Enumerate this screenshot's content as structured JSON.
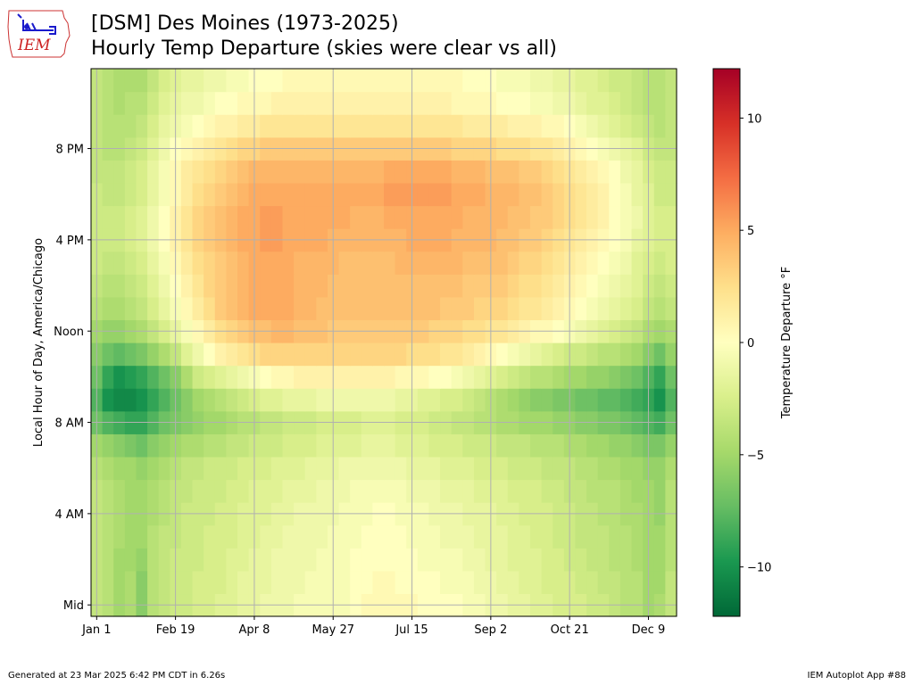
{
  "logo": {
    "text": "IEM"
  },
  "chart_data": {
    "type": "heatmap",
    "title": "[DSM] Des Moines (1973-2025)",
    "subtitle": "Hourly Temp Departure (skies were clear vs all)",
    "xlabel": "",
    "ylabel": "Local Hour of Day, America/Chicago",
    "x_tick_labels": [
      "Jan 1",
      "Feb 19",
      "Apr 8",
      "May 27",
      "Jul 15",
      "Sep 2",
      "Oct 21",
      "Dec 9"
    ],
    "y_tick_labels": [
      "Mid",
      "4 AM",
      "8 AM",
      "Noon",
      "4 PM",
      "8 PM"
    ],
    "colorbar_label": "Temperature Departure °F",
    "colorbar_ticks": [
      "−10",
      "−5",
      "0",
      "5",
      "10"
    ],
    "colorbar_tick_values": [
      -10,
      -5,
      0,
      5,
      10
    ],
    "colorbar_range": [
      -12.2,
      12.2
    ],
    "colormap": "RdYlGn_r",
    "colormap_stops": [
      "#006837",
      "#1a9850",
      "#66bd63",
      "#a6d96a",
      "#d9ef8b",
      "#ffffbf",
      "#fee08b",
      "#fdae61",
      "#f46d43",
      "#d73027",
      "#a50026"
    ],
    "grid": true,
    "x_columns": 52,
    "y_hours": 24,
    "values_by_hour": [
      [
        -3.5,
        -4.0,
        -5.0,
        -4.5,
        -6.0,
        -4.0,
        -3.5,
        -3.0,
        -3.0,
        -2.5,
        -2.5,
        -2.0,
        -2.0,
        -1.5,
        -1.5,
        -1.0,
        -1.0,
        -1.0,
        -0.5,
        -0.5,
        -0.5,
        -0.5,
        -0.5,
        0.0,
        0.5,
        0.5,
        0.5,
        0.5,
        0.5,
        0.0,
        0.0,
        0.0,
        0.0,
        -0.5,
        -0.5,
        -1.0,
        -1.0,
        -1.5,
        -1.5,
        -2.0,
        -2.0,
        -2.5,
        -2.5,
        -2.5,
        -3.0,
        -3.0,
        -3.5,
        -4.0,
        -4.0,
        -5.0,
        -4.5,
        -3.5
      ],
      [
        -3.5,
        -4.0,
        -5.0,
        -4.5,
        -6.0,
        -4.0,
        -3.5,
        -3.0,
        -3.0,
        -2.5,
        -2.5,
        -2.5,
        -2.0,
        -1.5,
        -1.5,
        -1.5,
        -1.0,
        -1.0,
        -1.0,
        -0.5,
        -0.5,
        -0.5,
        -0.5,
        0.0,
        0.0,
        0.5,
        0.5,
        0.0,
        0.0,
        0.0,
        0.0,
        -0.5,
        -0.5,
        -0.5,
        -1.0,
        -1.0,
        -1.5,
        -1.5,
        -2.0,
        -2.0,
        -2.5,
        -2.5,
        -2.5,
        -3.0,
        -3.0,
        -3.5,
        -3.5,
        -4.0,
        -4.0,
        -5.0,
        -5.0,
        -3.5
      ],
      [
        -3.5,
        -4.0,
        -5.0,
        -5.0,
        -5.5,
        -4.0,
        -3.5,
        -3.0,
        -3.0,
        -3.0,
        -2.5,
        -2.5,
        -2.0,
        -2.0,
        -1.5,
        -1.5,
        -1.0,
        -1.0,
        -1.0,
        -1.0,
        -0.5,
        -0.5,
        -0.5,
        0.0,
        0.0,
        0.0,
        0.0,
        0.0,
        0.0,
        -0.5,
        -0.5,
        -0.5,
        -0.5,
        -1.0,
        -1.0,
        -1.5,
        -1.5,
        -2.0,
        -2.0,
        -2.0,
        -2.5,
        -2.5,
        -3.0,
        -3.0,
        -3.5,
        -3.5,
        -4.0,
        -4.0,
        -4.5,
        -5.0,
        -5.0,
        -4.0
      ],
      [
        -3.5,
        -4.0,
        -4.5,
        -5.0,
        -5.0,
        -4.0,
        -3.5,
        -3.5,
        -3.0,
        -3.0,
        -2.5,
        -2.5,
        -2.5,
        -2.0,
        -2.0,
        -1.5,
        -1.5,
        -1.0,
        -1.0,
        -1.0,
        -1.0,
        -0.5,
        -0.5,
        -0.5,
        0.0,
        0.0,
        0.0,
        0.0,
        -0.5,
        -0.5,
        -0.5,
        -1.0,
        -1.0,
        -1.0,
        -1.5,
        -1.5,
        -1.5,
        -2.0,
        -2.0,
        -2.5,
        -2.5,
        -3.0,
        -3.0,
        -3.5,
        -3.5,
        -3.5,
        -4.0,
        -4.0,
        -4.5,
        -5.0,
        -5.0,
        -4.0
      ],
      [
        -3.5,
        -4.0,
        -4.5,
        -5.0,
        -5.0,
        -4.5,
        -4.0,
        -3.5,
        -3.0,
        -3.0,
        -3.0,
        -2.5,
        -2.5,
        -2.0,
        -2.0,
        -2.0,
        -1.5,
        -1.5,
        -1.0,
        -1.0,
        -1.0,
        -1.0,
        -0.5,
        -0.5,
        -0.5,
        0.0,
        0.0,
        -0.5,
        -0.5,
        -0.5,
        -1.0,
        -1.0,
        -1.0,
        -1.5,
        -1.5,
        -1.5,
        -2.0,
        -2.0,
        -2.5,
        -2.5,
        -2.5,
        -3.0,
        -3.0,
        -3.5,
        -3.5,
        -4.0,
        -4.0,
        -4.5,
        -4.5,
        -5.0,
        -5.5,
        -4.0
      ],
      [
        -3.5,
        -4.0,
        -4.5,
        -5.0,
        -5.0,
        -4.5,
        -4.0,
        -3.5,
        -3.5,
        -3.0,
        -3.0,
        -3.0,
        -2.5,
        -2.5,
        -2.0,
        -2.0,
        -2.0,
        -1.5,
        -1.5,
        -1.5,
        -1.0,
        -1.0,
        -1.0,
        -0.5,
        -0.5,
        -0.5,
        -0.5,
        -0.5,
        -1.0,
        -1.0,
        -1.0,
        -1.5,
        -1.5,
        -1.5,
        -2.0,
        -2.0,
        -2.0,
        -2.5,
        -2.5,
        -2.5,
        -3.0,
        -3.0,
        -3.5,
        -3.5,
        -4.0,
        -4.0,
        -4.0,
        -4.5,
        -5.0,
        -5.0,
        -5.5,
        -4.0
      ],
      [
        -4.0,
        -4.5,
        -5.0,
        -5.0,
        -5.5,
        -5.0,
        -4.5,
        -4.0,
        -3.5,
        -3.5,
        -3.0,
        -3.0,
        -3.0,
        -2.5,
        -2.5,
        -2.5,
        -2.0,
        -2.0,
        -2.0,
        -1.5,
        -1.5,
        -1.5,
        -1.0,
        -1.0,
        -1.0,
        -1.0,
        -1.0,
        -1.0,
        -1.5,
        -1.5,
        -1.5,
        -2.0,
        -2.0,
        -2.0,
        -2.5,
        -2.5,
        -2.5,
        -3.0,
        -3.0,
        -3.0,
        -3.5,
        -3.5,
        -3.5,
        -4.0,
        -4.0,
        -4.5,
        -4.5,
        -5.0,
        -5.0,
        -5.5,
        -5.5,
        -4.5
      ],
      [
        -5.0,
        -5.5,
        -6.0,
        -6.5,
        -7.0,
        -6.0,
        -5.5,
        -5.0,
        -4.5,
        -4.5,
        -4.0,
        -4.0,
        -3.5,
        -3.5,
        -3.0,
        -3.0,
        -3.0,
        -2.5,
        -2.5,
        -2.5,
        -2.0,
        -2.0,
        -2.0,
        -2.0,
        -1.5,
        -1.5,
        -1.5,
        -2.0,
        -2.0,
        -2.0,
        -2.5,
        -2.5,
        -2.5,
        -3.0,
        -3.0,
        -3.0,
        -3.5,
        -3.5,
        -3.5,
        -4.0,
        -4.0,
        -4.0,
        -4.5,
        -4.5,
        -5.0,
        -5.0,
        -5.5,
        -5.5,
        -6.0,
        -6.5,
        -6.5,
        -5.5
      ],
      [
        -7.0,
        -8.0,
        -8.5,
        -9.0,
        -9.0,
        -8.0,
        -7.0,
        -6.5,
        -6.0,
        -5.5,
        -5.0,
        -5.0,
        -4.5,
        -4.0,
        -4.0,
        -3.5,
        -3.5,
        -3.0,
        -3.0,
        -3.0,
        -2.5,
        -2.5,
        -2.5,
        -2.5,
        -2.0,
        -2.0,
        -2.0,
        -2.5,
        -2.5,
        -2.5,
        -3.0,
        -3.0,
        -3.5,
        -3.5,
        -4.0,
        -4.0,
        -4.5,
        -4.5,
        -5.0,
        -5.0,
        -5.0,
        -5.5,
        -5.5,
        -6.0,
        -6.0,
        -6.5,
        -6.5,
        -7.0,
        -7.5,
        -8.0,
        -8.5,
        -7.0
      ],
      [
        -8.0,
        -10.0,
        -10.5,
        -10.5,
        -10.0,
        -9.0,
        -8.0,
        -7.0,
        -6.0,
        -5.0,
        -4.5,
        -4.0,
        -3.5,
        -3.0,
        -2.5,
        -2.0,
        -2.0,
        -1.5,
        -1.5,
        -1.5,
        -1.0,
        -1.0,
        -1.0,
        -1.0,
        -1.0,
        -1.0,
        -1.0,
        -1.5,
        -1.5,
        -2.0,
        -2.0,
        -2.5,
        -2.5,
        -3.0,
        -3.5,
        -4.0,
        -4.5,
        -5.0,
        -5.5,
        -6.0,
        -6.0,
        -6.5,
        -6.5,
        -7.0,
        -7.0,
        -7.5,
        -7.5,
        -8.0,
        -8.5,
        -9.0,
        -10.0,
        -8.0
      ],
      [
        -7.0,
        -9.0,
        -10.0,
        -9.5,
        -9.0,
        -8.0,
        -7.0,
        -6.0,
        -4.5,
        -3.0,
        -2.5,
        -2.0,
        -1.5,
        -1.0,
        -0.5,
        0.0,
        0.5,
        0.5,
        1.0,
        1.0,
        1.0,
        1.0,
        1.0,
        1.0,
        1.0,
        1.0,
        1.0,
        0.5,
        0.5,
        0.5,
        0.0,
        0.0,
        -0.5,
        -1.0,
        -1.5,
        -2.0,
        -2.5,
        -3.0,
        -3.5,
        -4.0,
        -4.0,
        -4.5,
        -5.0,
        -5.0,
        -5.5,
        -5.5,
        -6.0,
        -6.5,
        -7.0,
        -8.0,
        -9.0,
        -7.0
      ],
      [
        -6.0,
        -7.0,
        -7.5,
        -7.0,
        -6.5,
        -5.5,
        -4.5,
        -3.5,
        -2.0,
        -1.0,
        0.0,
        1.0,
        1.5,
        2.0,
        2.5,
        3.0,
        3.0,
        3.0,
        3.0,
        3.0,
        3.0,
        3.0,
        3.0,
        3.0,
        3.0,
        3.0,
        3.0,
        3.0,
        2.5,
        2.5,
        2.5,
        2.0,
        2.0,
        1.5,
        1.0,
        0.5,
        0.0,
        -0.5,
        -1.0,
        -1.5,
        -2.0,
        -2.5,
        -3.0,
        -3.0,
        -3.5,
        -4.0,
        -4.0,
        -4.5,
        -5.0,
        -6.0,
        -7.0,
        -5.5
      ],
      [
        -5.0,
        -5.5,
        -5.5,
        -5.0,
        -4.5,
        -3.5,
        -2.5,
        -1.5,
        -0.5,
        0.5,
        1.5,
        2.5,
        3.0,
        3.5,
        4.0,
        4.0,
        4.5,
        4.5,
        4.0,
        4.0,
        4.0,
        3.5,
        3.5,
        3.5,
        3.5,
        3.5,
        3.5,
        3.5,
        3.5,
        3.5,
        3.0,
        3.0,
        3.0,
        2.5,
        2.5,
        2.0,
        2.0,
        1.5,
        1.0,
        0.5,
        0.5,
        0.0,
        -0.5,
        -1.0,
        -1.5,
        -2.0,
        -2.5,
        -3.0,
        -3.5,
        -4.5,
        -5.0,
        -4.5
      ],
      [
        -4.0,
        -4.5,
        -4.5,
        -4.0,
        -3.5,
        -2.5,
        -1.5,
        -0.5,
        0.5,
        1.5,
        2.5,
        3.5,
        4.0,
        4.5,
        5.0,
        5.0,
        5.0,
        5.0,
        4.5,
        4.5,
        4.0,
        4.0,
        4.0,
        4.0,
        4.0,
        4.0,
        4.0,
        4.0,
        4.0,
        4.0,
        4.0,
        3.5,
        3.5,
        3.5,
        3.0,
        3.0,
        3.0,
        2.5,
        2.0,
        2.0,
        1.5,
        1.0,
        0.5,
        0.0,
        -0.5,
        -1.0,
        -1.5,
        -2.0,
        -2.5,
        -3.5,
        -4.0,
        -3.5
      ],
      [
        -3.5,
        -4.0,
        -4.0,
        -3.5,
        -3.0,
        -2.0,
        -1.0,
        0.0,
        1.0,
        2.0,
        3.0,
        3.5,
        4.0,
        4.5,
        5.0,
        5.0,
        5.0,
        5.0,
        4.5,
        4.5,
        4.5,
        4.0,
        4.0,
        4.0,
        4.0,
        4.0,
        4.0,
        4.0,
        4.0,
        4.0,
        4.0,
        4.0,
        4.0,
        3.5,
        3.5,
        3.5,
        3.5,
        3.0,
        2.5,
        2.5,
        2.0,
        1.5,
        1.0,
        0.5,
        0.0,
        -0.5,
        -1.0,
        -1.5,
        -2.0,
        -3.0,
        -3.5,
        -3.0
      ],
      [
        -3.0,
        -3.5,
        -3.5,
        -3.0,
        -2.5,
        -1.5,
        -0.5,
        0.5,
        1.5,
        2.5,
        3.0,
        3.5,
        4.0,
        4.5,
        5.0,
        5.0,
        5.0,
        5.0,
        4.5,
        4.5,
        4.5,
        4.5,
        4.0,
        4.0,
        4.0,
        4.0,
        4.0,
        4.5,
        4.5,
        4.5,
        4.5,
        4.5,
        4.5,
        4.0,
        4.0,
        4.0,
        4.0,
        3.5,
        3.0,
        3.0,
        2.5,
        2.0,
        1.5,
        1.0,
        0.5,
        0.0,
        -0.5,
        -1.0,
        -2.0,
        -2.5,
        -3.0,
        -2.5
      ],
      [
        -3.0,
        -3.0,
        -3.0,
        -2.5,
        -2.0,
        -1.0,
        0.0,
        1.0,
        2.0,
        3.0,
        3.5,
        4.0,
        4.5,
        5.0,
        5.0,
        5.5,
        5.5,
        5.0,
        5.0,
        5.0,
        5.0,
        4.5,
        4.5,
        4.5,
        4.5,
        4.5,
        4.5,
        4.5,
        5.0,
        5.0,
        5.0,
        5.0,
        4.5,
        4.5,
        4.5,
        4.5,
        4.0,
        4.0,
        3.5,
        3.5,
        3.0,
        2.5,
        2.0,
        1.5,
        1.0,
        0.5,
        0.0,
        -0.5,
        -1.5,
        -2.0,
        -2.5,
        -2.5
      ],
      [
        -3.0,
        -3.0,
        -3.0,
        -2.5,
        -2.0,
        -1.0,
        0.0,
        1.0,
        2.0,
        3.0,
        3.5,
        4.0,
        4.5,
        5.0,
        5.0,
        5.5,
        5.5,
        5.0,
        5.0,
        5.0,
        5.0,
        5.0,
        5.0,
        4.5,
        4.5,
        4.5,
        5.0,
        5.0,
        5.0,
        5.0,
        5.0,
        5.0,
        5.0,
        4.5,
        4.5,
        4.5,
        4.5,
        4.0,
        4.0,
        3.5,
        3.5,
        3.0,
        2.5,
        2.0,
        1.5,
        1.0,
        0.0,
        -0.5,
        -1.0,
        -2.0,
        -2.5,
        -2.5
      ],
      [
        -3.0,
        -3.5,
        -3.5,
        -3.0,
        -2.5,
        -1.5,
        -0.5,
        0.5,
        1.5,
        2.5,
        3.0,
        3.5,
        4.0,
        4.5,
        5.0,
        5.0,
        5.0,
        5.0,
        5.0,
        5.0,
        5.0,
        5.0,
        5.0,
        5.0,
        5.0,
        5.0,
        5.5,
        5.5,
        5.5,
        5.5,
        5.5,
        5.5,
        5.0,
        5.0,
        5.0,
        4.5,
        4.5,
        4.5,
        4.0,
        4.0,
        3.5,
        3.0,
        2.5,
        2.0,
        1.5,
        1.0,
        0.0,
        -0.5,
        -1.5,
        -2.0,
        -3.0,
        -3.0
      ],
      [
        -3.5,
        -3.5,
        -3.5,
        -3.0,
        -2.5,
        -1.5,
        -0.5,
        0.5,
        1.5,
        2.0,
        2.5,
        3.0,
        3.5,
        4.0,
        4.5,
        4.5,
        4.5,
        4.5,
        4.5,
        4.5,
        4.5,
        4.5,
        4.5,
        4.5,
        4.5,
        4.5,
        5.0,
        5.0,
        5.0,
        5.0,
        5.0,
        5.0,
        4.5,
        4.5,
        4.5,
        4.0,
        4.0,
        4.0,
        3.5,
        3.5,
        3.0,
        2.5,
        2.0,
        1.5,
        1.0,
        0.5,
        0.0,
        -1.0,
        -1.5,
        -2.5,
        -3.0,
        -3.0
      ],
      [
        -3.5,
        -4.0,
        -4.0,
        -3.5,
        -3.0,
        -2.0,
        -1.0,
        0.0,
        0.5,
        1.0,
        1.5,
        2.0,
        2.5,
        3.0,
        3.0,
        3.5,
        3.5,
        3.5,
        3.5,
        3.5,
        3.5,
        3.5,
        3.5,
        3.5,
        3.5,
        3.5,
        3.5,
        3.5,
        3.5,
        3.5,
        3.5,
        3.5,
        3.0,
        3.0,
        3.0,
        3.0,
        2.5,
        2.5,
        2.5,
        2.0,
        2.0,
        1.5,
        1.0,
        0.5,
        0.0,
        -0.5,
        -1.0,
        -1.5,
        -2.0,
        -3.0,
        -3.5,
        -3.5
      ],
      [
        -3.5,
        -4.0,
        -4.0,
        -4.0,
        -3.5,
        -2.5,
        -1.5,
        -1.0,
        -0.5,
        0.0,
        0.5,
        1.0,
        1.0,
        1.5,
        1.5,
        2.0,
        2.0,
        2.0,
        2.0,
        2.0,
        2.0,
        2.0,
        2.0,
        2.0,
        2.0,
        2.0,
        2.0,
        2.0,
        2.0,
        2.0,
        2.0,
        2.0,
        2.0,
        1.5,
        1.5,
        1.5,
        1.5,
        1.0,
        1.0,
        1.0,
        0.5,
        0.5,
        0.0,
        -0.5,
        -1.0,
        -1.5,
        -2.0,
        -2.5,
        -3.0,
        -3.5,
        -4.0,
        -3.5
      ],
      [
        -3.5,
        -4.0,
        -4.5,
        -4.0,
        -4.0,
        -3.0,
        -2.0,
        -1.5,
        -1.0,
        -1.0,
        -0.5,
        0.0,
        0.0,
        0.5,
        0.5,
        0.5,
        1.0,
        1.0,
        1.0,
        1.0,
        1.0,
        1.0,
        1.0,
        1.0,
        1.0,
        1.0,
        1.0,
        1.0,
        1.0,
        1.0,
        1.0,
        1.0,
        0.5,
        0.5,
        0.5,
        0.5,
        0.0,
        0.0,
        0.0,
        -0.5,
        -0.5,
        -1.0,
        -1.0,
        -1.5,
        -2.0,
        -2.0,
        -2.5,
        -3.0,
        -3.5,
        -4.0,
        -4.0,
        -3.5
      ],
      [
        -3.5,
        -4.0,
        -4.5,
        -4.5,
        -4.5,
        -3.5,
        -2.5,
        -2.0,
        -1.5,
        -1.5,
        -1.0,
        -1.0,
        -0.5,
        -0.5,
        0.0,
        0.0,
        0.0,
        0.5,
        0.5,
        0.5,
        0.5,
        0.5,
        0.5,
        0.5,
        0.5,
        0.5,
        0.5,
        0.5,
        0.5,
        0.5,
        0.5,
        0.5,
        0.5,
        0.0,
        0.0,
        0.0,
        -0.5,
        -0.5,
        -0.5,
        -1.0,
        -1.0,
        -1.5,
        -1.5,
        -2.0,
        -2.0,
        -2.5,
        -3.0,
        -3.0,
        -3.5,
        -4.0,
        -4.0,
        -3.5
      ]
    ]
  },
  "footer": {
    "left": "Generated at 23 Mar 2025 6:42 PM CDT in 6.26s",
    "right": "IEM Autoplot App #88"
  }
}
